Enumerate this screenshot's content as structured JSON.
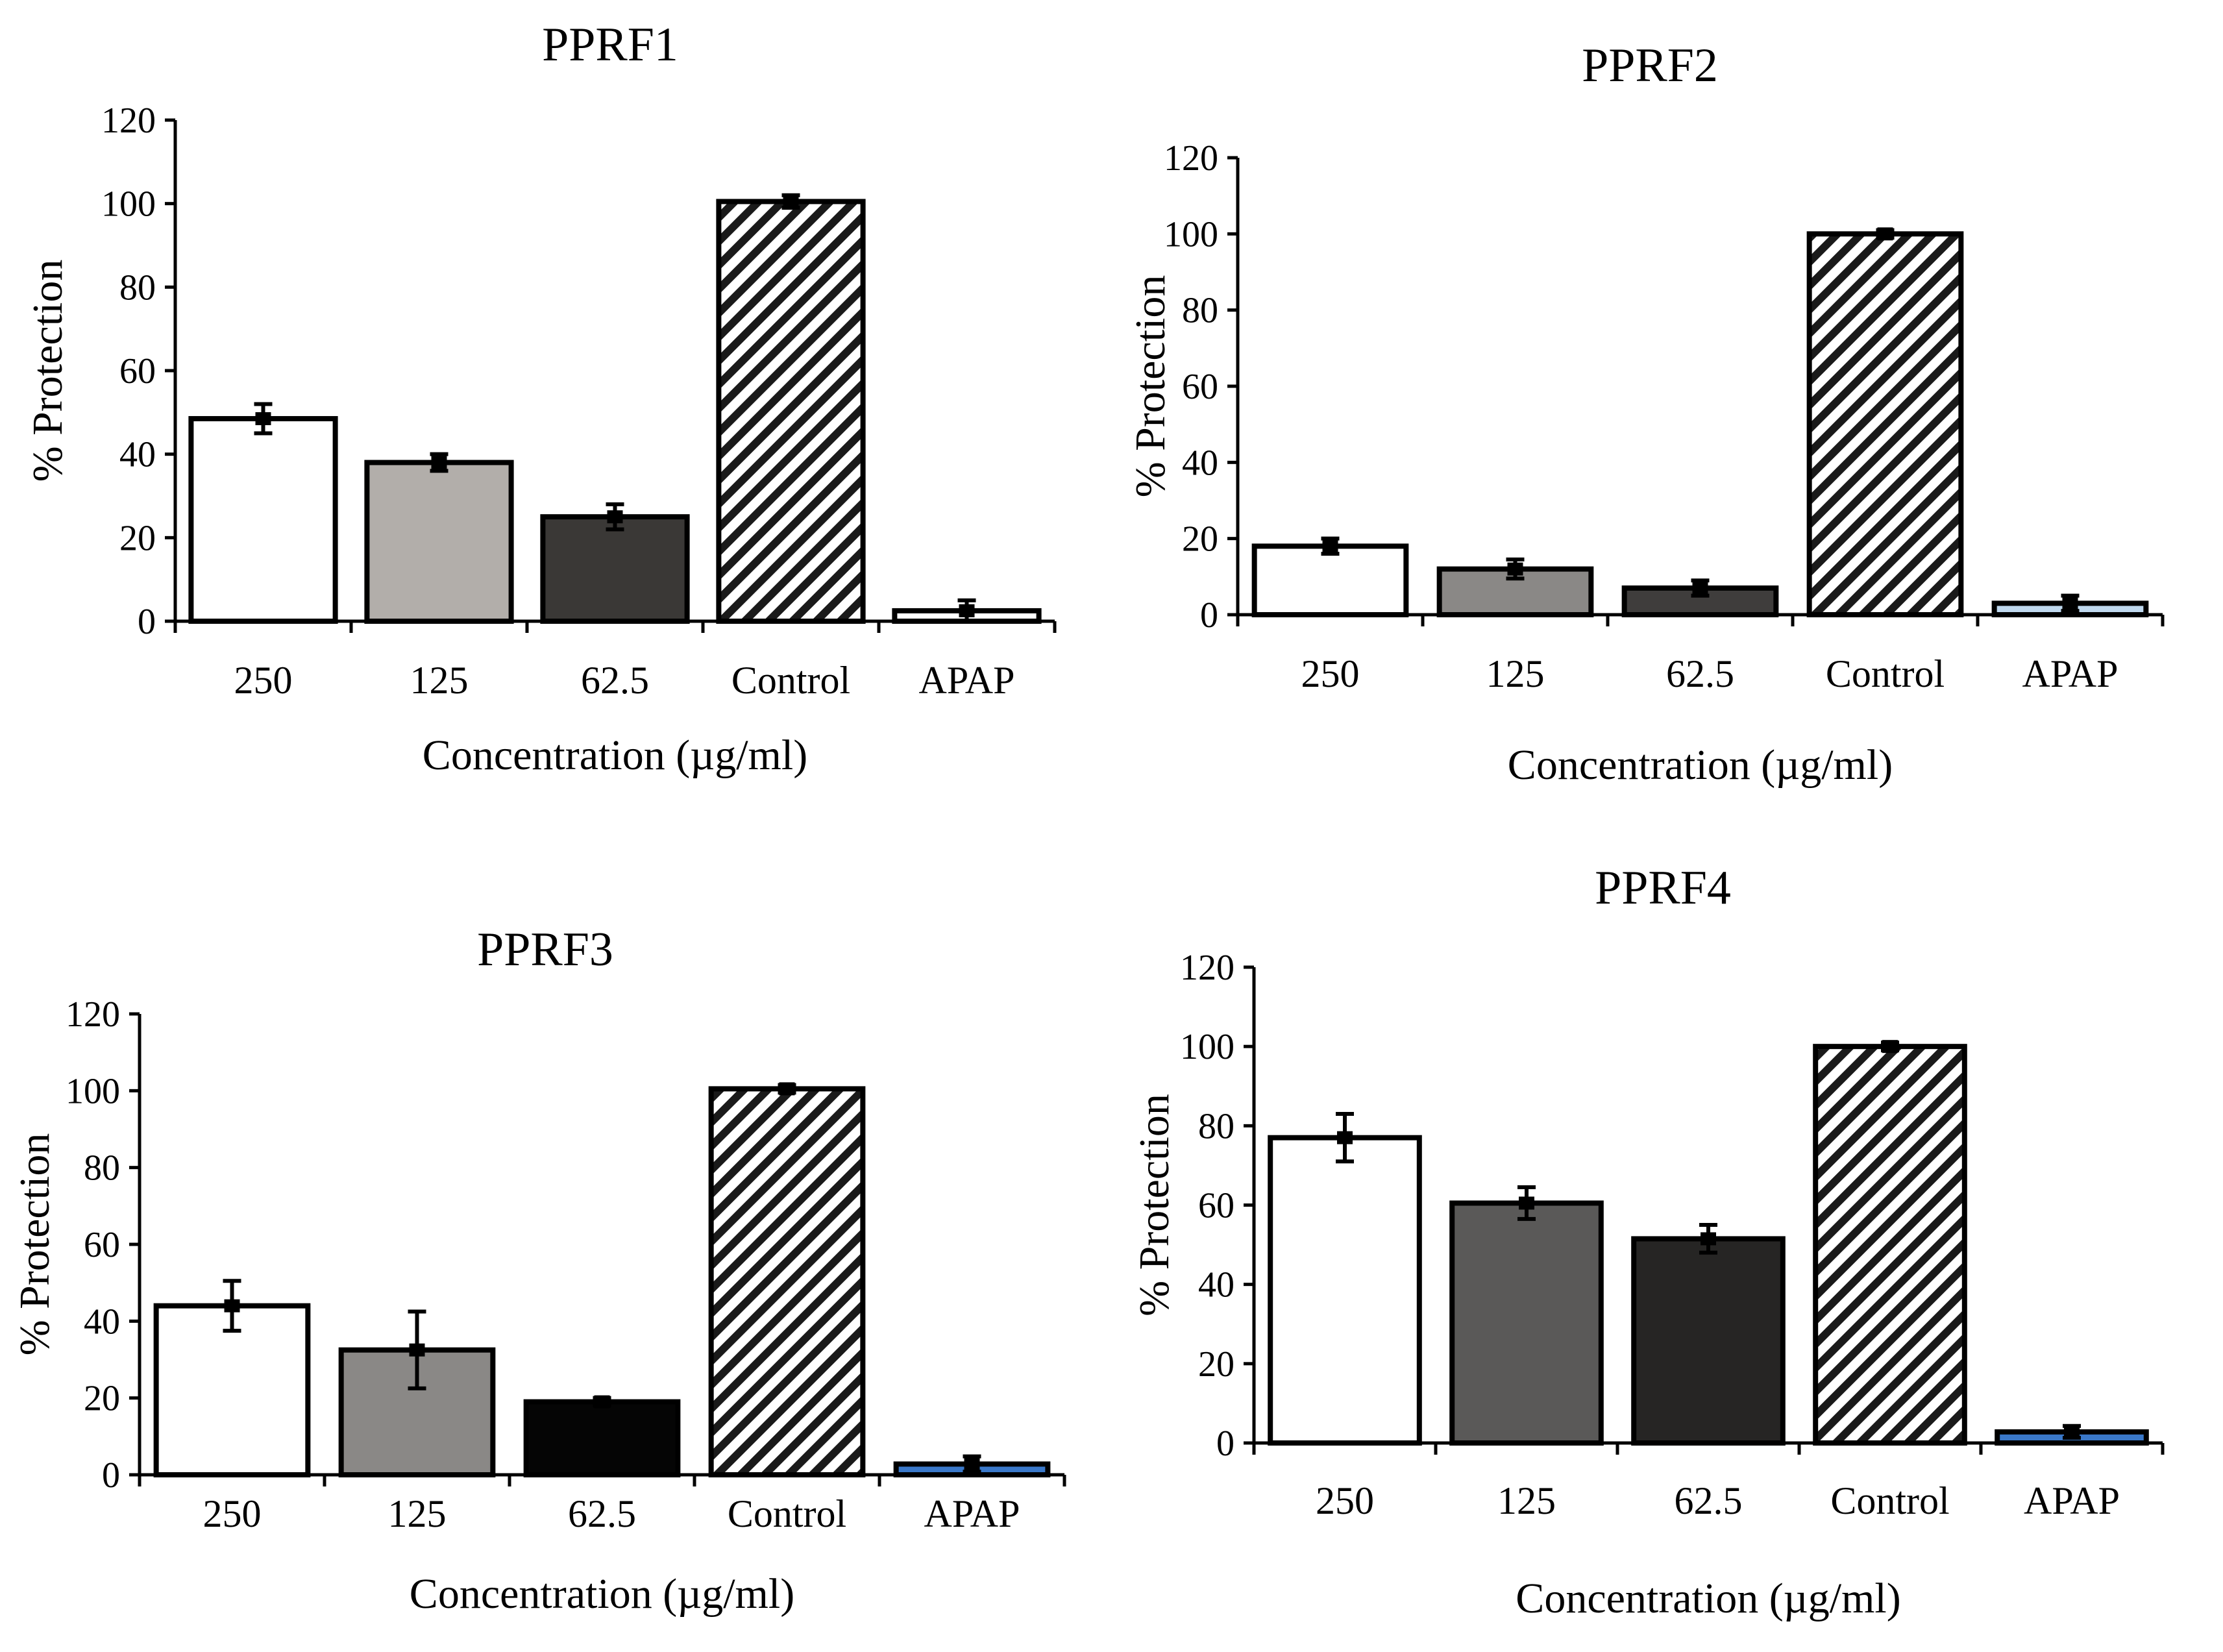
{
  "figure": {
    "panels": [
      "PPRF1",
      "PPRF2",
      "PPRF3",
      "PPRF4"
    ]
  },
  "chart_data": [
    {
      "type": "bar",
      "title": "PPRF1",
      "xlabel": "Concentration (µg/ml)",
      "ylabel": "% Protection",
      "ylim": [
        0,
        120
      ],
      "yticks": [
        "0",
        "20",
        "40",
        "60",
        "80",
        "100",
        "120"
      ],
      "categories": [
        "250",
        "125",
        "62.5",
        "Control",
        "APAP"
      ],
      "values": [
        48.5,
        38,
        25,
        100.5,
        2.5
      ],
      "errors": [
        3.5,
        2,
        3,
        1.5,
        2.5
      ],
      "colors": [
        "#ffffff",
        "#b2aeaa",
        "#3a3836",
        "hatch",
        "#ffffff"
      ],
      "grid": false
    },
    {
      "type": "bar",
      "title": "PPRF2",
      "xlabel": "Concentration (µg/ml)",
      "ylabel": "% Protection",
      "ylim": [
        0,
        120
      ],
      "yticks": [
        "0",
        "20",
        "40",
        "60",
        "80",
        "100",
        "120"
      ],
      "categories": [
        "250",
        "125",
        "62.5",
        "Control",
        "APAP"
      ],
      "values": [
        18,
        12,
        7,
        100,
        3
      ],
      "errors": [
        2,
        2.5,
        2,
        1,
        2
      ],
      "colors": [
        "#ffffff",
        "#8a8886",
        "#3f3d3c",
        "hatch",
        "#bfd8ee"
      ],
      "grid": false
    },
    {
      "type": "bar",
      "title": "PPRF3",
      "xlabel": "Concentration (µg/ml)",
      "ylabel": "% Protection",
      "ylim": [
        0,
        120
      ],
      "yticks": [
        "0",
        "20",
        "40",
        "60",
        "80",
        "100",
        "120"
      ],
      "categories": [
        "250",
        "125",
        "62.5",
        "Control",
        "APAP"
      ],
      "values": [
        44,
        32.5,
        19,
        100.5,
        2.8
      ],
      "errors": [
        6.5,
        10,
        1,
        1,
        2
      ],
      "colors": [
        "#ffffff",
        "#8a8886",
        "#050505",
        "hatch",
        "#3a78c9"
      ],
      "grid": false
    },
    {
      "type": "bar",
      "title": "PPRF4",
      "xlabel": "Concentration (µg/ml)",
      "ylabel": "% Protection",
      "ylim": [
        0,
        120
      ],
      "yticks": [
        "0",
        "20",
        "40",
        "60",
        "80",
        "100",
        "120"
      ],
      "categories": [
        "250",
        "125",
        "62.5",
        "Control",
        "APAP"
      ],
      "values": [
        77,
        60.5,
        51.5,
        100,
        2.8
      ],
      "errors": [
        6,
        4,
        3.5,
        1,
        1.5
      ],
      "colors": [
        "#ffffff",
        "#5a5958",
        "#262524",
        "hatch",
        "#3a78c9"
      ],
      "grid": false
    }
  ]
}
